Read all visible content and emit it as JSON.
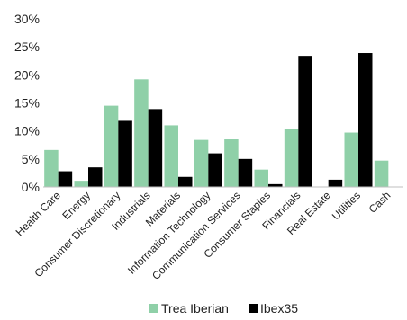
{
  "chart_data": {
    "type": "bar",
    "categories": [
      "Health Care",
      "Energy",
      "Consumer Discretionary",
      "Industrials",
      "Materials",
      "Information Technology",
      "Communication Services",
      "Consumer Staples",
      "Financials",
      "Real Estate",
      "Utilities",
      "Cash"
    ],
    "series": [
      {
        "name": "Trea Iberian",
        "color": "#8fd0a8",
        "values": [
          6.6,
          1.1,
          14.5,
          19.2,
          11.0,
          8.4,
          8.5,
          3.1,
          10.4,
          0.0,
          9.7,
          4.7
        ]
      },
      {
        "name": "Ibex35",
        "color": "#000000",
        "values": [
          2.8,
          3.5,
          11.8,
          13.9,
          1.8,
          6.0,
          5.0,
          0.5,
          23.4,
          1.3,
          23.9,
          0.0
        ]
      }
    ],
    "y_ticks": [
      "0%",
      "5%",
      "10%",
      "15%",
      "20%",
      "25%",
      "30%"
    ],
    "ylim": [
      0,
      30
    ],
    "legend_position": "bottom",
    "grid": false
  }
}
